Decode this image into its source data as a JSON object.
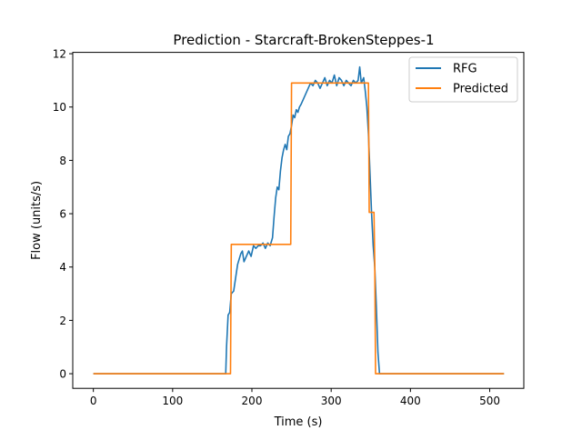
{
  "chart_data": {
    "type": "line",
    "title": "Prediction - Starcraft-BrokenSteppes-1",
    "xlabel": "Time (s)",
    "ylabel": "Flow (units/s)",
    "xlim": [
      -26,
      543
    ],
    "ylim": [
      -0.55,
      12.05
    ],
    "xticks": [
      0,
      100,
      200,
      300,
      400,
      500
    ],
    "yticks": [
      0,
      2,
      4,
      6,
      8,
      10,
      12
    ],
    "grid": false,
    "legend_position": "top-right",
    "series": [
      {
        "name": "RFG",
        "color": "#1f77b4",
        "points": [
          [
            0,
            0
          ],
          [
            167,
            0
          ],
          [
            168,
            1.0
          ],
          [
            170,
            2.2
          ],
          [
            172,
            2.3
          ],
          [
            174,
            3.0
          ],
          [
            177,
            3.1
          ],
          [
            180,
            3.7
          ],
          [
            182,
            4.1
          ],
          [
            184,
            4.3
          ],
          [
            186,
            4.5
          ],
          [
            188,
            4.6
          ],
          [
            190,
            4.2
          ],
          [
            193,
            4.4
          ],
          [
            196,
            4.6
          ],
          [
            199,
            4.4
          ],
          [
            202,
            4.8
          ],
          [
            205,
            4.7
          ],
          [
            208,
            4.8
          ],
          [
            211,
            4.8
          ],
          [
            214,
            4.9
          ],
          [
            217,
            4.7
          ],
          [
            220,
            4.9
          ],
          [
            223,
            4.8
          ],
          [
            226,
            5.1
          ],
          [
            228,
            5.9
          ],
          [
            230,
            6.6
          ],
          [
            232,
            7.0
          ],
          [
            234,
            6.9
          ],
          [
            236,
            7.6
          ],
          [
            238,
            8.1
          ],
          [
            240,
            8.4
          ],
          [
            242,
            8.6
          ],
          [
            244,
            8.4
          ],
          [
            246,
            8.9
          ],
          [
            248,
            9.0
          ],
          [
            250,
            9.3
          ],
          [
            252,
            9.7
          ],
          [
            254,
            9.6
          ],
          [
            256,
            9.9
          ],
          [
            258,
            9.8
          ],
          [
            260,
            10.0
          ],
          [
            262,
            10.1
          ],
          [
            265,
            10.3
          ],
          [
            268,
            10.5
          ],
          [
            271,
            10.7
          ],
          [
            274,
            10.9
          ],
          [
            277,
            10.8
          ],
          [
            280,
            11.0
          ],
          [
            283,
            10.9
          ],
          [
            286,
            10.7
          ],
          [
            289,
            10.9
          ],
          [
            292,
            11.1
          ],
          [
            295,
            10.8
          ],
          [
            298,
            11.0
          ],
          [
            301,
            10.9
          ],
          [
            304,
            11.2
          ],
          [
            307,
            10.8
          ],
          [
            310,
            11.1
          ],
          [
            313,
            11.0
          ],
          [
            316,
            10.8
          ],
          [
            319,
            11.0
          ],
          [
            322,
            10.9
          ],
          [
            325,
            10.8
          ],
          [
            328,
            11.0
          ],
          [
            331,
            10.9
          ],
          [
            334,
            11.0
          ],
          [
            336,
            11.5
          ],
          [
            338,
            10.9
          ],
          [
            341,
            11.1
          ],
          [
            343,
            10.6
          ],
          [
            345,
            10.0
          ],
          [
            347,
            9.0
          ],
          [
            349,
            7.5
          ],
          [
            351,
            6.0
          ],
          [
            353,
            4.8
          ],
          [
            355,
            4.0
          ],
          [
            357,
            2.5
          ],
          [
            359,
            0.8
          ],
          [
            361,
            0
          ],
          [
            518,
            0
          ]
        ]
      },
      {
        "name": "Predicted",
        "color": "#ff7f0e",
        "points": [
          [
            0,
            0
          ],
          [
            173,
            0
          ],
          [
            174,
            4.85
          ],
          [
            249,
            4.85
          ],
          [
            250,
            10.9
          ],
          [
            347,
            10.9
          ],
          [
            348,
            6.05
          ],
          [
            354,
            6.05
          ],
          [
            355,
            4.1
          ],
          [
            356,
            0
          ],
          [
            518,
            0
          ]
        ]
      }
    ]
  }
}
